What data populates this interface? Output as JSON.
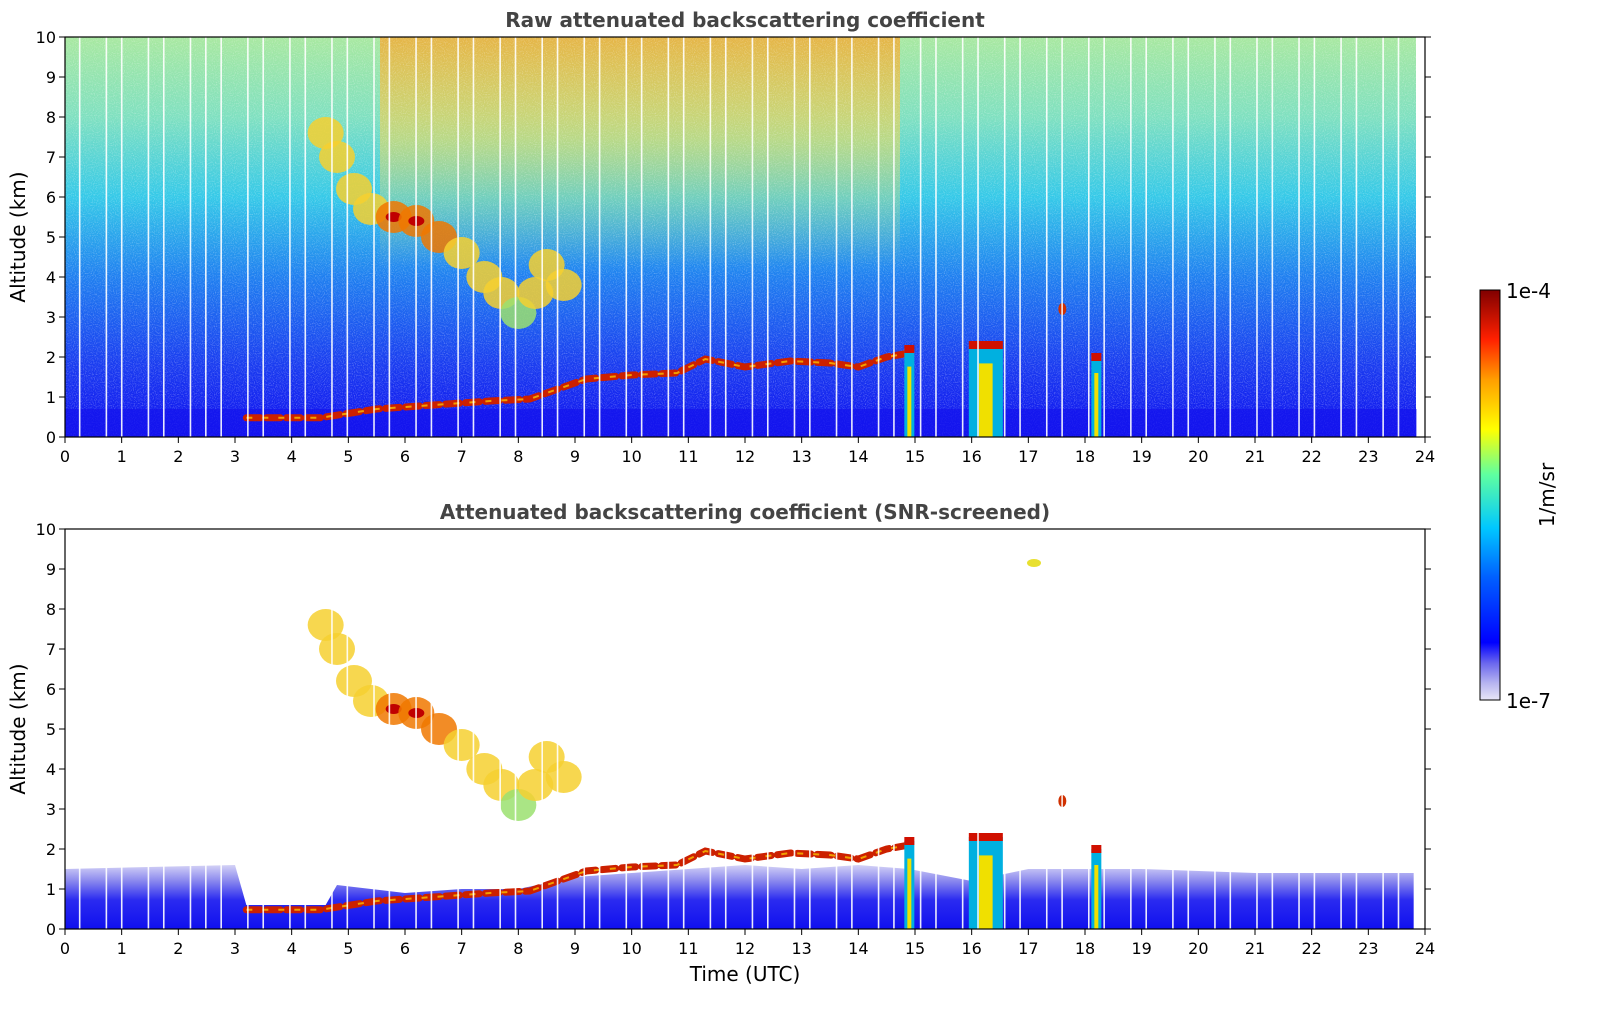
{
  "figure": {
    "colorbar": {
      "label": "1/m/sr",
      "top_label": "1e-4",
      "bottom_label": "1e-7",
      "scale": "log",
      "range": [
        1e-07,
        0.0001
      ],
      "colormap": "jet (with light-lavender low end)"
    },
    "xlabel": "Time (UTC)"
  },
  "chart_data": [
    {
      "type": "heatmap",
      "title": "Raw attenuated backscattering coefficient",
      "xlabel": "",
      "ylabel": "Altitude (km)",
      "xlim": [
        0,
        24
      ],
      "ylim": [
        0,
        10
      ],
      "xticks": [
        0,
        1,
        2,
        3,
        4,
        5,
        6,
        7,
        8,
        9,
        10,
        11,
        12,
        13,
        14,
        15,
        16,
        17,
        18,
        19,
        20,
        21,
        22,
        23,
        24
      ],
      "yticks": [
        0,
        1,
        2,
        3,
        4,
        5,
        6,
        7,
        8,
        9,
        10
      ],
      "background": "noisy; blue near surface, cyan-green mid, yellow-orange aloft around 6-15 UTC",
      "features": [
        {
          "kind": "cirrus descending band",
          "time": [
            4.6,
            8.8
          ],
          "altitude_km": [
            2.8,
            8.0
          ]
        },
        {
          "kind": "boundary layer top (strong)",
          "time": [
            3.2,
            14.9
          ],
          "altitude_km": [
            0.45,
            2.1
          ]
        },
        {
          "kind": "precipitation columns",
          "times": [
            14.9,
            16.2,
            18.2
          ],
          "altitude_km": [
            0,
            2.3
          ]
        },
        {
          "kind": "isolated aerosol/cloud patch",
          "time": 17.6,
          "altitude_km": 3.2
        }
      ]
    },
    {
      "type": "heatmap",
      "title": "Attenuated backscattering coefficient (SNR-screened)",
      "xlabel": "Time (UTC)",
      "ylabel": "Altitude (km)",
      "xlim": [
        0,
        24
      ],
      "ylim": [
        0,
        10
      ],
      "xticks": [
        0,
        1,
        2,
        3,
        4,
        5,
        6,
        7,
        8,
        9,
        10,
        11,
        12,
        13,
        14,
        15,
        16,
        17,
        18,
        19,
        20,
        21,
        22,
        23,
        24
      ],
      "yticks": [
        0,
        1,
        2,
        3,
        4,
        5,
        6,
        7,
        8,
        9,
        10
      ],
      "background": "white where screened; blue/lavender boundary layer below ~1.5 km",
      "features": [
        {
          "kind": "cirrus descending band",
          "time": [
            4.6,
            8.8
          ],
          "altitude_km": [
            2.8,
            8.0
          ]
        },
        {
          "kind": "boundary layer top (strong)",
          "time": [
            3.2,
            14.9
          ],
          "altitude_km": [
            0.45,
            2.1
          ]
        },
        {
          "kind": "precipitation columns",
          "times": [
            14.9,
            16.2,
            18.2
          ],
          "altitude_km": [
            0,
            2.3
          ]
        },
        {
          "kind": "small cloud",
          "time": 17.1,
          "altitude_km": 9.1
        },
        {
          "kind": "isolated aerosol/cloud patch",
          "time": 17.6,
          "altitude_km": 3.2
        }
      ]
    }
  ]
}
